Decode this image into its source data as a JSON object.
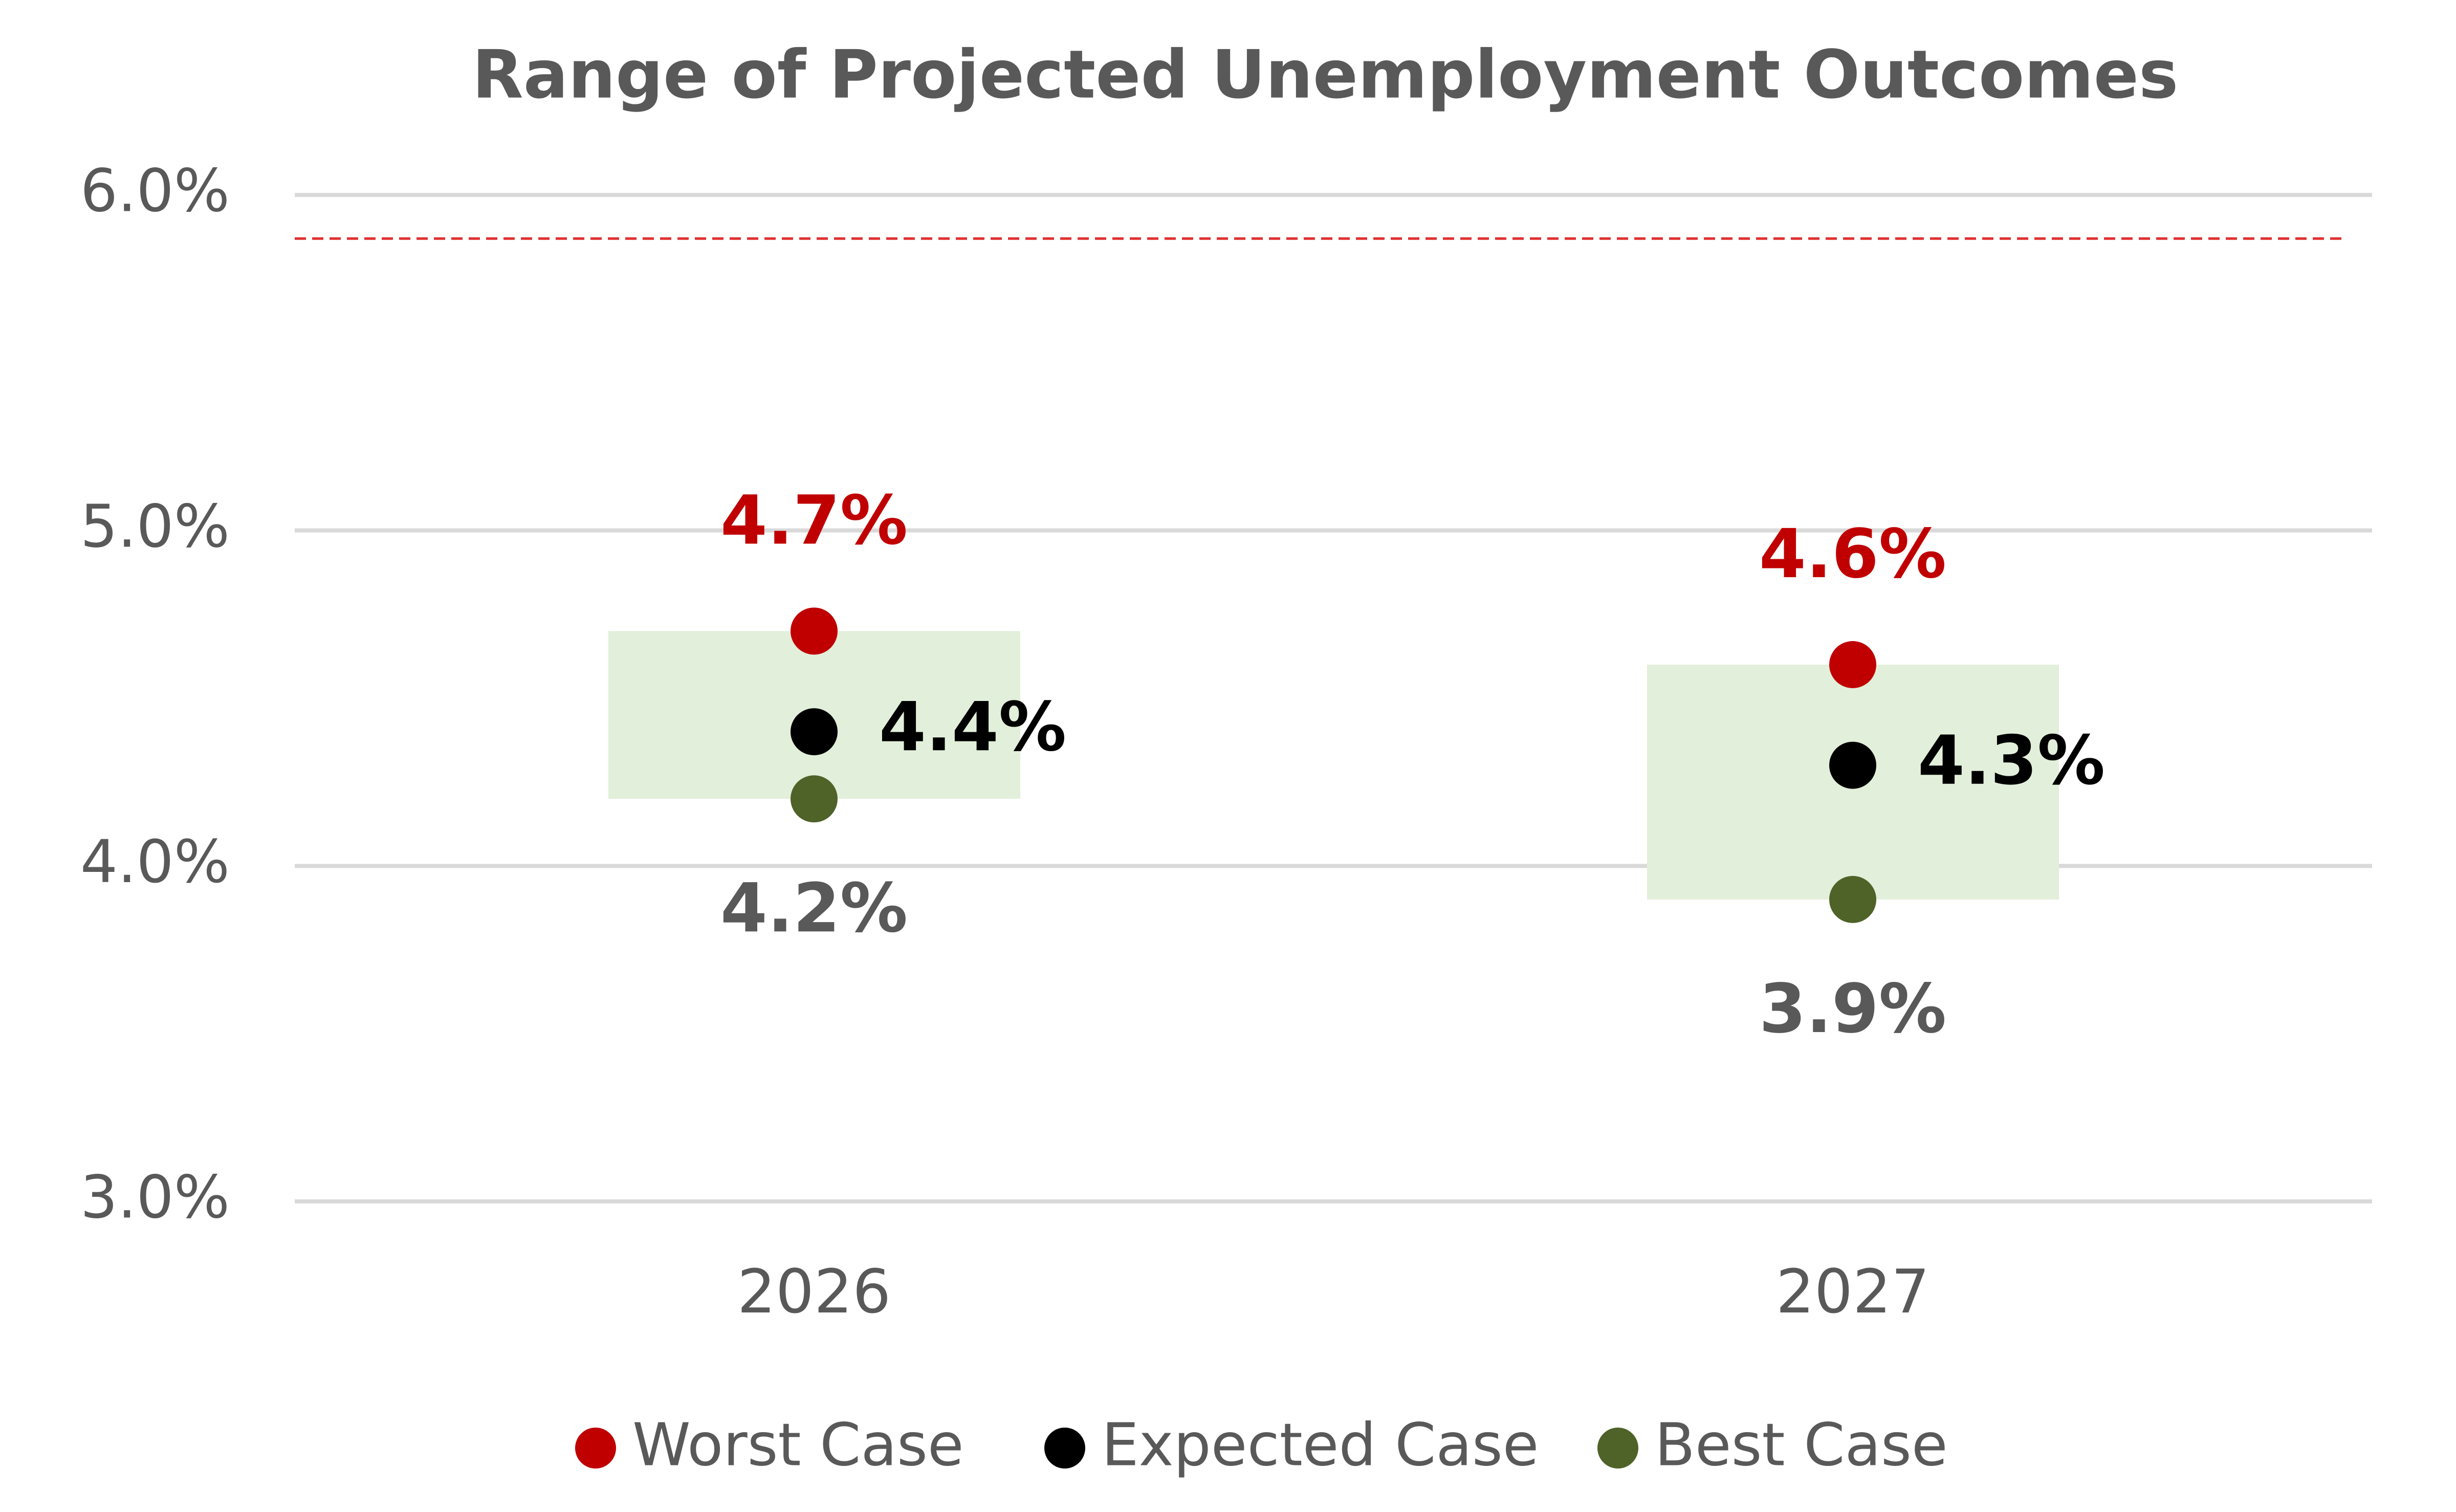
{
  "chart_data": {
    "type": "range_dot",
    "title": "Range of Projected Unemployment Outcomes",
    "categories": [
      "2026",
      "2027"
    ],
    "series": [
      {
        "name": "Worst Case",
        "color": "#c00000",
        "label_color": "#c00000",
        "values": [
          4.7,
          4.6
        ],
        "value_labels": [
          "4.7%",
          "4.6%"
        ]
      },
      {
        "name": "Expected Case",
        "color": "#000000",
        "label_color": "#000000",
        "values": [
          4.4,
          4.3
        ],
        "value_labels": [
          "4.4%",
          "4.3%"
        ]
      },
      {
        "name": "Best Case",
        "color": "#4f6228",
        "label_color": "#595959",
        "values": [
          4.2,
          3.9
        ],
        "value_labels": [
          "4.2%",
          "3.9%"
        ]
      }
    ],
    "range_color": "#e2efda",
    "reference_line": {
      "value": 5.87,
      "color": "#e03030",
      "dashed": true
    },
    "ylim": [
      3,
      6
    ],
    "yticks": [
      {
        "value": 3,
        "label": "3.0%"
      },
      {
        "value": 4,
        "label": "4.0%"
      },
      {
        "value": 5,
        "label": "5.0%"
      },
      {
        "value": 6,
        "label": "6.0%"
      }
    ],
    "grid": true,
    "legend": "bottom"
  }
}
